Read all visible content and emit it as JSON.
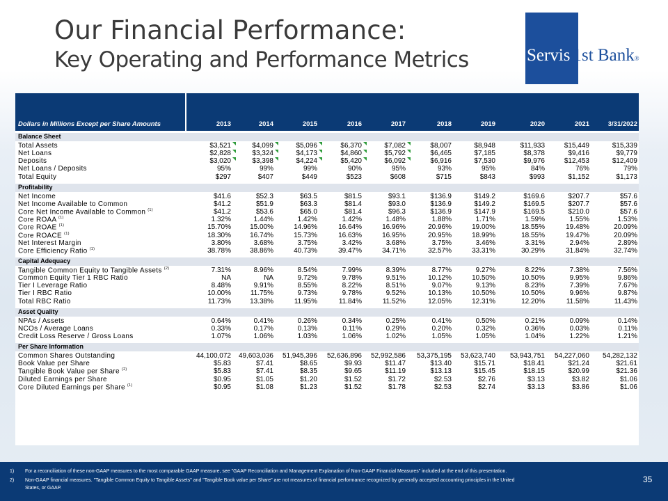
{
  "title_line1": "Our Financial Performance:",
  "title_line2": "Key Operating and Performance Metrics",
  "logo": {
    "part1": "Servis",
    "part2": "1st Bank",
    "mark": "®"
  },
  "table": {
    "header_label": "Dollars in Millions Except per Share Amounts",
    "years": [
      "2013",
      "2014",
      "2015",
      "2016",
      "2017",
      "2018",
      "2019",
      "2020",
      "2021",
      "3/31/2022"
    ],
    "sections": [
      {
        "title": "Balance Sheet",
        "rows": [
          {
            "label": "Total Assets",
            "sup": "",
            "values": [
              "$3,521",
              "$4,099",
              "$5,096",
              "$6,370",
              "$7,082",
              "$8,007",
              "$8,948",
              "$11,933",
              "$15,449",
              "$15,339"
            ]
          },
          {
            "label": "Net Loans",
            "sup": "",
            "values": [
              "$2,828",
              "$3,324",
              "$4,173",
              "$4,860",
              "$5,792",
              "$6,465",
              "$7,185",
              "$8,378",
              "$9,416",
              "$9,779"
            ]
          },
          {
            "label": "Deposits",
            "sup": "",
            "values": [
              "$3,020",
              "$3,398",
              "$4,224",
              "$5,420",
              "$6,092",
              "$6,916",
              "$7,530",
              "$9,976",
              "$12,453",
              "$12,409"
            ]
          },
          {
            "label": "Net Loans / Deposits",
            "sup": "",
            "values": [
              "95%",
              "99%",
              "99%",
              "90%",
              "95%",
              "93%",
              "95%",
              "84%",
              "76%",
              "79%"
            ]
          },
          {
            "label": "Total Equity",
            "sup": "",
            "values": [
              "$297",
              "$407",
              "$449",
              "$523",
              "$608",
              "$715",
              "$843",
              "$993",
              "$1,152",
              "$1,173"
            ]
          }
        ]
      },
      {
        "title": "Profitability",
        "rows": [
          {
            "label": "Net Income",
            "sup": "",
            "values": [
              "$41.6",
              "$52.3",
              "$63.5",
              "$81.5",
              "$93.1",
              "$136.9",
              "$149.2",
              "$169.6",
              "$207.7",
              "$57.6"
            ]
          },
          {
            "label": "Net Income Available to Common",
            "sup": "",
            "values": [
              "$41.2",
              "$51.9",
              "$63.3",
              "$81.4",
              "$93.0",
              "$136.9",
              "$149.2",
              "$169.5",
              "$207.7",
              "$57.6"
            ]
          },
          {
            "label": "Core Net Income Available to Common",
            "sup": "(1)",
            "values": [
              "$41.2",
              "$53.6",
              "$65.0",
              "$81.4",
              "$96.3",
              "$136.9",
              "$147.9",
              "$169.5",
              "$210.0",
              "$57.6"
            ]
          },
          {
            "label": "Core ROAA",
            "sup": "(1)",
            "values": [
              "1.32%",
              "1.44%",
              "1.42%",
              "1.42%",
              "1.48%",
              "1.88%",
              "1.71%",
              "1.59%",
              "1.55%",
              "1.53%"
            ]
          },
          {
            "label": "Core ROAE",
            "sup": "(1)",
            "values": [
              "15.70%",
              "15.00%",
              "14.96%",
              "16.64%",
              "16.96%",
              "20.96%",
              "19.00%",
              "18.55%",
              "19.48%",
              "20.09%"
            ]
          },
          {
            "label": "Core ROACE",
            "sup": "(1)",
            "values": [
              "18.30%",
              "16.74%",
              "15.73%",
              "16.63%",
              "16.95%",
              "20.95%",
              "18.99%",
              "18.55%",
              "19.47%",
              "20.09%"
            ]
          },
          {
            "label": "Net Interest Margin",
            "sup": "",
            "values": [
              "3.80%",
              "3.68%",
              "3.75%",
              "3.42%",
              "3.68%",
              "3.75%",
              "3.46%",
              "3.31%",
              "2.94%",
              "2.89%"
            ]
          },
          {
            "label": "Core Efficiency Ratio",
            "sup": "(1)",
            "values": [
              "38.78%",
              "38.86%",
              "40.73%",
              "39.47%",
              "34.71%",
              "32.57%",
              "33.31%",
              "30.29%",
              "31.84%",
              "32.74%"
            ]
          }
        ]
      },
      {
        "title": "Capital Adequacy",
        "rows": [
          {
            "label": "Tangible Common Equity to Tangible Assets",
            "sup": "(2)",
            "values": [
              "7.31%",
              "8.96%",
              "8.54%",
              "7.99%",
              "8.39%",
              "8.77%",
              "9.27%",
              "8.22%",
              "7.38%",
              "7.56%"
            ]
          },
          {
            "label": "Common Equity Tier 1 RBC Ratio",
            "sup": "",
            "values": [
              "NA",
              "NA",
              "9.72%",
              "9.78%",
              "9.51%",
              "10.12%",
              "10.50%",
              "10.50%",
              "9.95%",
              "9.86%"
            ]
          },
          {
            "label": "Tier I Leverage Ratio",
            "sup": "",
            "values": [
              "8.48%",
              "9.91%",
              "8.55%",
              "8.22%",
              "8.51%",
              "9.07%",
              "9.13%",
              "8.23%",
              "7.39%",
              "7.67%"
            ]
          },
          {
            "label": "Tier I RBC Ratio",
            "sup": "",
            "values": [
              "10.00%",
              "11.75%",
              "9.73%",
              "9.78%",
              "9.52%",
              "10.13%",
              "10.50%",
              "10.50%",
              "9.96%",
              "9.87%"
            ]
          },
          {
            "label": "Total RBC Ratio",
            "sup": "",
            "values": [
              "11.73%",
              "13.38%",
              "11.95%",
              "11.84%",
              "11.52%",
              "12.05%",
              "12.31%",
              "12.20%",
              "11.58%",
              "11.43%"
            ]
          }
        ]
      },
      {
        "title": "Asset Quality",
        "rows": [
          {
            "label": "NPAs / Assets",
            "sup": "",
            "values": [
              "0.64%",
              "0.41%",
              "0.26%",
              "0.34%",
              "0.25%",
              "0.41%",
              "0.50%",
              "0.21%",
              "0.09%",
              "0.14%"
            ]
          },
          {
            "label": "NCOs / Average Loans",
            "sup": "",
            "values": [
              "0.33%",
              "0.17%",
              "0.13%",
              "0.11%",
              "0.29%",
              "0.20%",
              "0.32%",
              "0.36%",
              "0.03%",
              "0.11%"
            ]
          },
          {
            "label": "Credit Loss Reserve / Gross Loans",
            "sup": "",
            "values": [
              "1.07%",
              "1.06%",
              "1.03%",
              "1.06%",
              "1.02%",
              "1.05%",
              "1.05%",
              "1.04%",
              "1.22%",
              "1.21%"
            ]
          }
        ]
      },
      {
        "title": "Per Share Information",
        "rows": [
          {
            "label": "Common Shares Outstanding",
            "sup": "",
            "values": [
              "44,100,072",
              "49,603,036",
              "51,945,396",
              "52,636,896",
              "52,992,586",
              "53,375,195",
              "53,623,740",
              "53,943,751",
              "54,227,060",
              "54,282,132"
            ]
          },
          {
            "label": "Book Value per Share",
            "sup": "",
            "values": [
              "$5.83",
              "$7.41",
              "$8.65",
              "$9.93",
              "$11.47",
              "$13.40",
              "$15.71",
              "$18.41",
              "$21.24",
              "$21.61"
            ]
          },
          {
            "label": "Tangible Book Value per Share",
            "sup": "(2)",
            "values": [
              "$5.83",
              "$7.41",
              "$8.35",
              "$9.65",
              "$11.19",
              "$13.13",
              "$15.45",
              "$18.15",
              "$20.99",
              "$21.36"
            ]
          },
          {
            "label": "Diluted Earnings per Share",
            "sup": "",
            "values": [
              "$0.95",
              "$1.05",
              "$1.20",
              "$1.52",
              "$1.72",
              "$2.53",
              "$2.76",
              "$3.13",
              "$3.82",
              "$1.06"
            ]
          },
          {
            "label": "Core Diluted Earnings per Share",
            "sup": "(1)",
            "values": [
              "$0.95",
              "$1.08",
              "$1.23",
              "$1.52",
              "$1.78",
              "$2.53",
              "$2.74",
              "$3.13",
              "$3.86",
              "$1.06"
            ]
          }
        ]
      }
    ]
  },
  "footnotes": {
    "n1": "1)",
    "t1": "For a reconciliation of these non-GAAP measures to the most comparable GAAP measure, see \"GAAP Reconciliation and Management Explanation of Non-GAAP Financial Measures\" included at the end of this presentation.",
    "n2": "2)",
    "t2a": "Non-GAAP financial measures. \"Tangible Common Equity to Tangible Assets\" and \"Tangible Book value per Share\" are not measures of financial performance recognized by generally accepted accounting principles in the United",
    "t2b": "States, or GAAP."
  },
  "page_number": "35",
  "colors": {
    "navy": "#0b3a75",
    "logo_blue": "#1c4f9c",
    "flag_green": "#2e9b3a"
  }
}
